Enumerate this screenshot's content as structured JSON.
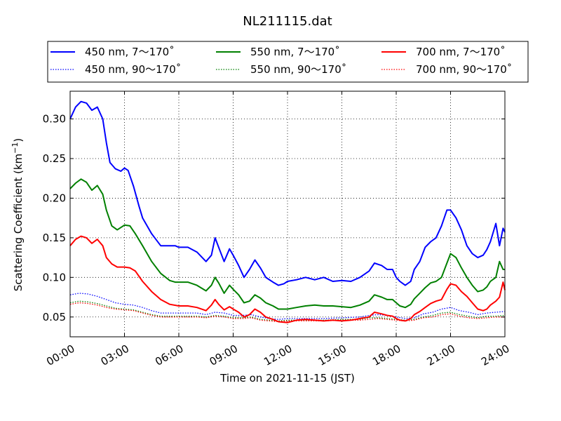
{
  "chart_data": {
    "type": "line",
    "title": "NL211115.dat",
    "xlabel": "Time on 2021-11-15 (JST)",
    "ylabel_main": "Scattering Coefficient (km",
    "ylabel_sup": "−1",
    "ylabel_close": ")",
    "xlim": [
      0,
      24
    ],
    "ylim": [
      0.025,
      0.335
    ],
    "x_ticks": [
      0,
      3,
      6,
      9,
      12,
      15,
      18,
      21,
      24
    ],
    "x_tick_labels": [
      "00:00",
      "03:00",
      "06:00",
      "09:00",
      "12:00",
      "15:00",
      "18:00",
      "21:00",
      "24:00"
    ],
    "y_ticks": [
      0.05,
      0.1,
      0.15,
      0.2,
      0.25,
      0.3
    ],
    "y_tick_labels": [
      "0.05",
      "0.10",
      "0.15",
      "0.20",
      "0.25",
      "0.30"
    ],
    "grid": true,
    "legend": "top",
    "series": [
      {
        "name": "450 nm, 7～170˚",
        "color": "#0000ff",
        "style": "solid",
        "x": [
          0,
          0.3,
          0.6,
          0.9,
          1.2,
          1.5,
          1.8,
          2.0,
          2.2,
          2.5,
          2.8,
          3.0,
          3.2,
          3.5,
          3.8,
          4.0,
          4.5,
          5.0,
          5.5,
          5.8,
          6.0,
          6.5,
          7.0,
          7.5,
          7.8,
          8.0,
          8.2,
          8.5,
          8.8,
          9.0,
          9.3,
          9.6,
          9.9,
          10.2,
          10.5,
          10.8,
          11.2,
          11.5,
          11.8,
          12.0,
          12.5,
          13.0,
          13.5,
          14.0,
          14.5,
          15.0,
          15.5,
          16.0,
          16.5,
          16.8,
          17.2,
          17.5,
          17.8,
          18.0,
          18.2,
          18.5,
          18.8,
          19.0,
          19.3,
          19.6,
          19.9,
          20.2,
          20.5,
          20.8,
          21.0,
          21.3,
          21.6,
          21.9,
          22.2,
          22.5,
          22.8,
          23.0,
          23.2,
          23.5,
          23.7,
          23.9,
          24.0
        ],
        "y": [
          0.3,
          0.315,
          0.322,
          0.32,
          0.311,
          0.315,
          0.3,
          0.27,
          0.245,
          0.237,
          0.234,
          0.238,
          0.235,
          0.215,
          0.19,
          0.175,
          0.155,
          0.14,
          0.14,
          0.14,
          0.138,
          0.138,
          0.132,
          0.12,
          0.128,
          0.15,
          0.138,
          0.12,
          0.136,
          0.128,
          0.115,
          0.1,
          0.11,
          0.122,
          0.112,
          0.1,
          0.094,
          0.09,
          0.092,
          0.095,
          0.097,
          0.1,
          0.097,
          0.1,
          0.095,
          0.096,
          0.095,
          0.1,
          0.108,
          0.118,
          0.115,
          0.11,
          0.11,
          0.1,
          0.095,
          0.09,
          0.095,
          0.11,
          0.12,
          0.138,
          0.145,
          0.15,
          0.165,
          0.185,
          0.185,
          0.175,
          0.16,
          0.14,
          0.13,
          0.125,
          0.128,
          0.135,
          0.145,
          0.168,
          0.14,
          0.162,
          0.157
        ]
      },
      {
        "name": "450 nm, 90～170˚",
        "color": "#0000ff",
        "style": "dotted",
        "x": [
          0,
          0.5,
          1.0,
          1.5,
          2.0,
          2.5,
          3.0,
          3.5,
          4.0,
          4.5,
          5.0,
          6.0,
          7.0,
          7.5,
          8.0,
          8.5,
          9.0,
          9.5,
          10.0,
          10.5,
          11.0,
          11.5,
          12.0,
          13.0,
          14.0,
          15.0,
          16.0,
          16.5,
          17.0,
          17.5,
          18.0,
          18.5,
          19.0,
          19.5,
          20.0,
          20.5,
          21.0,
          21.5,
          22.0,
          22.5,
          23.0,
          23.5,
          24.0
        ],
        "y": [
          0.078,
          0.08,
          0.079,
          0.076,
          0.072,
          0.068,
          0.066,
          0.065,
          0.062,
          0.058,
          0.055,
          0.055,
          0.055,
          0.053,
          0.056,
          0.055,
          0.052,
          0.052,
          0.053,
          0.05,
          0.048,
          0.047,
          0.048,
          0.048,
          0.048,
          0.049,
          0.05,
          0.052,
          0.053,
          0.052,
          0.05,
          0.048,
          0.049,
          0.054,
          0.056,
          0.06,
          0.062,
          0.058,
          0.056,
          0.053,
          0.055,
          0.056,
          0.057
        ]
      },
      {
        "name": "550 nm, 7～170˚",
        "color": "#008000",
        "style": "solid",
        "x": [
          0,
          0.3,
          0.6,
          0.9,
          1.2,
          1.5,
          1.8,
          2.0,
          2.3,
          2.6,
          3.0,
          3.3,
          3.6,
          4.0,
          4.5,
          5.0,
          5.5,
          5.8,
          6.0,
          6.5,
          7.0,
          7.5,
          7.8,
          8.0,
          8.2,
          8.5,
          8.8,
          9.0,
          9.3,
          9.6,
          9.9,
          10.2,
          10.5,
          10.8,
          11.2,
          11.5,
          12.0,
          12.5,
          13.0,
          13.5,
          14.0,
          14.5,
          15.0,
          15.5,
          16.0,
          16.5,
          16.8,
          17.2,
          17.5,
          17.8,
          18.0,
          18.2,
          18.5,
          18.8,
          19.0,
          19.3,
          19.6,
          19.9,
          20.2,
          20.5,
          20.8,
          21.0,
          21.3,
          21.6,
          21.9,
          22.2,
          22.5,
          22.8,
          23.0,
          23.2,
          23.5,
          23.7,
          23.9,
          24.0
        ],
        "y": [
          0.212,
          0.219,
          0.224,
          0.22,
          0.21,
          0.216,
          0.205,
          0.185,
          0.165,
          0.16,
          0.166,
          0.165,
          0.155,
          0.14,
          0.12,
          0.105,
          0.096,
          0.094,
          0.094,
          0.094,
          0.09,
          0.083,
          0.09,
          0.1,
          0.093,
          0.08,
          0.09,
          0.085,
          0.078,
          0.068,
          0.07,
          0.078,
          0.074,
          0.068,
          0.064,
          0.06,
          0.06,
          0.062,
          0.064,
          0.065,
          0.064,
          0.064,
          0.063,
          0.062,
          0.065,
          0.07,
          0.078,
          0.075,
          0.072,
          0.072,
          0.068,
          0.064,
          0.062,
          0.066,
          0.073,
          0.08,
          0.087,
          0.093,
          0.095,
          0.1,
          0.118,
          0.13,
          0.125,
          0.112,
          0.1,
          0.09,
          0.082,
          0.084,
          0.088,
          0.095,
          0.1,
          0.12,
          0.11,
          0.11
        ]
      },
      {
        "name": "550 nm, 90～170˚",
        "color": "#008000",
        "style": "dotted",
        "x": [
          0,
          0.5,
          1.0,
          1.5,
          2.0,
          2.5,
          3.0,
          3.5,
          4.0,
          4.5,
          5.0,
          6.0,
          7.0,
          7.5,
          8.0,
          8.5,
          9.0,
          9.5,
          10.0,
          10.5,
          11.0,
          11.5,
          12.0,
          13.0,
          14.0,
          15.0,
          16.0,
          16.5,
          17.0,
          17.5,
          18.0,
          18.5,
          19.0,
          19.5,
          20.0,
          20.5,
          21.0,
          21.5,
          22.0,
          22.5,
          23.0,
          23.5,
          24.0
        ],
        "y": [
          0.068,
          0.07,
          0.069,
          0.067,
          0.064,
          0.061,
          0.06,
          0.059,
          0.056,
          0.053,
          0.051,
          0.051,
          0.051,
          0.05,
          0.052,
          0.051,
          0.049,
          0.049,
          0.05,
          0.047,
          0.046,
          0.045,
          0.046,
          0.046,
          0.046,
          0.047,
          0.047,
          0.049,
          0.049,
          0.048,
          0.047,
          0.046,
          0.047,
          0.05,
          0.052,
          0.055,
          0.056,
          0.053,
          0.051,
          0.049,
          0.051,
          0.051,
          0.052
        ]
      },
      {
        "name": "700 nm, 7～170˚",
        "color": "#ff0000",
        "style": "solid",
        "x": [
          0,
          0.3,
          0.6,
          0.9,
          1.2,
          1.5,
          1.8,
          2.0,
          2.3,
          2.6,
          3.0,
          3.3,
          3.6,
          4.0,
          4.5,
          5.0,
          5.5,
          6.0,
          6.5,
          7.0,
          7.5,
          7.8,
          8.0,
          8.2,
          8.5,
          8.8,
          9.0,
          9.3,
          9.6,
          9.9,
          10.2,
          10.5,
          10.8,
          11.2,
          11.5,
          12.0,
          12.5,
          13.0,
          13.5,
          14.0,
          14.5,
          15.0,
          15.5,
          16.0,
          16.5,
          16.8,
          17.2,
          17.5,
          17.8,
          18.0,
          18.2,
          18.5,
          18.8,
          19.0,
          19.3,
          19.6,
          19.9,
          20.2,
          20.5,
          20.8,
          21.0,
          21.3,
          21.6,
          21.9,
          22.2,
          22.5,
          22.8,
          23.0,
          23.2,
          23.5,
          23.7,
          23.9,
          24.0
        ],
        "y": [
          0.14,
          0.148,
          0.152,
          0.15,
          0.143,
          0.148,
          0.14,
          0.125,
          0.117,
          0.113,
          0.113,
          0.112,
          0.108,
          0.095,
          0.082,
          0.072,
          0.066,
          0.064,
          0.064,
          0.062,
          0.058,
          0.065,
          0.072,
          0.066,
          0.059,
          0.063,
          0.06,
          0.056,
          0.05,
          0.053,
          0.06,
          0.056,
          0.05,
          0.047,
          0.044,
          0.043,
          0.046,
          0.047,
          0.046,
          0.045,
          0.046,
          0.045,
          0.046,
          0.048,
          0.05,
          0.056,
          0.054,
          0.052,
          0.051,
          0.048,
          0.046,
          0.045,
          0.048,
          0.053,
          0.057,
          0.062,
          0.067,
          0.07,
          0.072,
          0.085,
          0.092,
          0.09,
          0.082,
          0.076,
          0.068,
          0.06,
          0.058,
          0.06,
          0.065,
          0.07,
          0.075,
          0.094,
          0.084
        ]
      },
      {
        "name": "700 nm, 90～170˚",
        "color": "#ff0000",
        "style": "dotted",
        "x": [
          0,
          0.5,
          1.0,
          1.5,
          2.0,
          2.5,
          3.0,
          3.5,
          4.0,
          4.5,
          5.0,
          6.0,
          7.0,
          7.5,
          8.0,
          8.5,
          9.0,
          9.5,
          10.0,
          10.5,
          11.0,
          11.5,
          12.0,
          13.0,
          14.0,
          15.0,
          16.0,
          16.5,
          17.0,
          17.5,
          18.0,
          18.5,
          19.0,
          19.5,
          20.0,
          20.5,
          21.0,
          21.5,
          22.0,
          22.5,
          23.0,
          23.5,
          24.0
        ],
        "y": [
          0.066,
          0.068,
          0.067,
          0.065,
          0.062,
          0.06,
          0.059,
          0.058,
          0.055,
          0.052,
          0.05,
          0.05,
          0.05,
          0.049,
          0.051,
          0.05,
          0.048,
          0.048,
          0.049,
          0.046,
          0.045,
          0.044,
          0.045,
          0.045,
          0.045,
          0.046,
          0.046,
          0.047,
          0.048,
          0.047,
          0.046,
          0.045,
          0.046,
          0.049,
          0.05,
          0.053,
          0.054,
          0.051,
          0.049,
          0.048,
          0.049,
          0.05,
          0.05
        ]
      }
    ]
  }
}
